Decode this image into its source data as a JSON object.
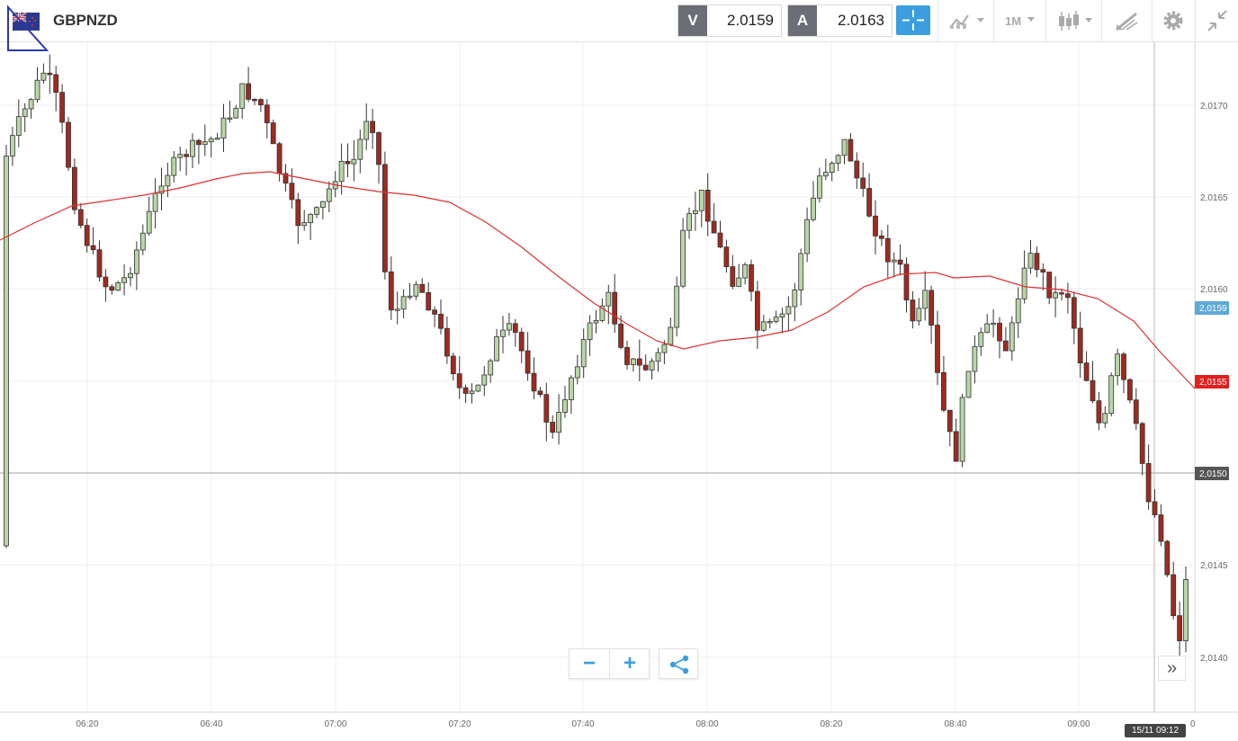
{
  "header": {
    "symbol": "GBPNZD",
    "flag_icon": "gb-nz-flag-icon",
    "sell": {
      "tag": "V",
      "value": "2.0159"
    },
    "buy": {
      "tag": "A",
      "value": "2.0163"
    },
    "toolbar": {
      "crosshair_icon": "crosshair-icon",
      "indicators_icon": "indicators-icon",
      "timeframe_label": "1M",
      "chart_type_icon": "candlestick-icon",
      "drawing_icon": "drawing-tools-icon",
      "settings_icon": "gear-icon",
      "collapse_icon": "collapse-icon"
    }
  },
  "chart": {
    "y_labels": [
      "2,0170",
      "2,0165",
      "2,0160",
      "2,0155",
      "2,0150",
      "2,0145",
      "2,0140"
    ],
    "x_labels": [
      "06:20",
      "06:40",
      "07:00",
      "07:20",
      "07:40",
      "08:00",
      "08:20",
      "08:40",
      "09:00"
    ],
    "x_cut_label": "0",
    "price_badges": [
      {
        "label": "2,0159",
        "color": "#5da9d8"
      },
      {
        "label": "2,0155",
        "color": "#e31e1e"
      },
      {
        "label": "2,0150",
        "color": "#555555"
      }
    ],
    "time_badge": "15/11 09:12",
    "colors": {
      "bull": "#b8d6a6",
      "bear": "#a02a1f",
      "ma": "#e03030"
    }
  },
  "controls": {
    "zoom_out_label": "−",
    "zoom_in_label": "+",
    "share_icon": "share-icon",
    "fast_forward_label": "»"
  }
}
